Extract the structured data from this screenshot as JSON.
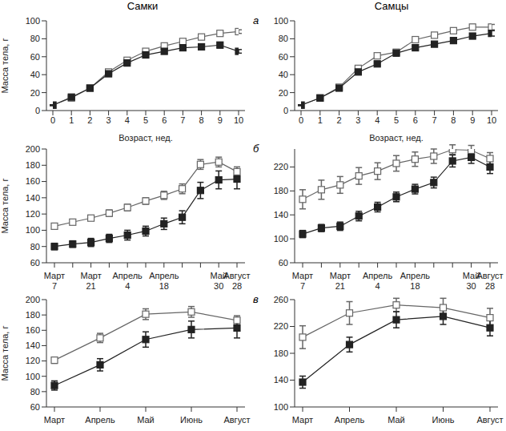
{
  "chart_data": [
    {
      "type": "line",
      "title": "Самки",
      "x_label": "Возраст, нед.",
      "y_label": "Масса тела, г",
      "x": [
        0,
        1,
        2,
        3,
        4,
        5,
        6,
        7,
        8,
        9,
        10
      ],
      "xlim": [
        0,
        10
      ],
      "xticks": [
        0,
        1,
        2,
        3,
        4,
        5,
        6,
        7,
        8,
        9,
        10
      ],
      "ylim": [
        0,
        100
      ],
      "yticks": [
        0,
        20,
        40,
        60,
        80,
        100
      ],
      "grid": false,
      "series": [
        {
          "color": "#666666",
          "marker": "square_open",
          "values": [
            6,
            14,
            25,
            43,
            56,
            66,
            72,
            77,
            82,
            86,
            88
          ],
          "errors": [
            0.5,
            0.5,
            1,
            1,
            1.5,
            1.5,
            1.5,
            2,
            2,
            2,
            2
          ]
        },
        {
          "color": "#222222",
          "marker": "square_filled",
          "values": [
            6,
            15,
            25,
            41,
            53,
            62,
            66,
            70,
            71,
            73,
            66
          ],
          "errors": [
            0.5,
            0.5,
            1,
            1,
            1.5,
            1.5,
            2,
            2,
            2,
            3,
            2
          ]
        }
      ]
    },
    {
      "type": "line",
      "title": "Самцы",
      "x_label": "Возраст, нед.",
      "annotation": "а",
      "x": [
        0,
        1,
        2,
        3,
        4,
        5,
        6,
        7,
        8,
        9,
        10
      ],
      "xlim": [
        0,
        10
      ],
      "xticks": [
        0,
        1,
        2,
        3,
        4,
        5,
        6,
        7,
        8,
        9,
        10
      ],
      "ylim": [
        0,
        100
      ],
      "yticks": [
        0,
        20,
        40,
        60,
        80,
        100
      ],
      "grid": false,
      "series": [
        {
          "color": "#666666",
          "marker": "square_open",
          "values": [
            6,
            14,
            26,
            47,
            61,
            65,
            79,
            84,
            89,
            93,
            93
          ],
          "errors": [
            0.5,
            0.5,
            1,
            1.5,
            2,
            2,
            2,
            2.5,
            3,
            3,
            3
          ]
        },
        {
          "color": "#222222",
          "marker": "square_filled",
          "values": [
            6,
            14,
            25,
            43,
            52,
            64,
            70,
            74,
            78,
            83,
            86
          ],
          "errors": [
            0.5,
            0.5,
            1,
            1,
            1.5,
            2,
            2,
            2,
            2,
            2.5,
            3
          ]
        }
      ]
    },
    {
      "type": "line",
      "y_label": "Масса тела, г",
      "categories": [
        "Март 7",
        null,
        "Март 21",
        null,
        "Апрель 4",
        null,
        "Апрель 18",
        null,
        null,
        "Май 30",
        "Август 28"
      ],
      "ylim": [
        60,
        200
      ],
      "yticks": [
        60,
        80,
        100,
        120,
        140,
        160,
        180,
        200
      ],
      "grid": false,
      "series": [
        {
          "color": "#666666",
          "marker": "square_open",
          "values": [
            105,
            110,
            115,
            121,
            128,
            136,
            143,
            151,
            181,
            184,
            172
          ],
          "errors": [
            3,
            3,
            3,
            4,
            4,
            4,
            5,
            6,
            6,
            6,
            6
          ]
        },
        {
          "color": "#222222",
          "marker": "square_filled",
          "values": [
            80,
            83,
            85,
            90,
            94,
            99,
            108,
            116,
            149,
            162,
            163
          ],
          "errors": [
            4,
            4,
            5,
            5,
            6,
            6,
            7,
            8,
            10,
            11,
            12
          ]
        }
      ]
    },
    {
      "type": "line",
      "annotation": "б",
      "categories": [
        "Март 7",
        null,
        "Март 21",
        null,
        "Апрель 4",
        null,
        "Апрель 18",
        null,
        null,
        "Май 30",
        "Август 28"
      ],
      "ylim": [
        60,
        250
      ],
      "yticks": [
        60,
        100,
        140,
        180,
        220
      ],
      "grid": false,
      "series": [
        {
          "color": "#666666",
          "marker": "square_open",
          "values": [
            166,
            182,
            190,
            205,
            213,
            226,
            233,
            238,
            249,
            248,
            234
          ],
          "errors": [
            16,
            16,
            14,
            14,
            14,
            13,
            12,
            12,
            8,
            8,
            10
          ]
        },
        {
          "color": "#222222",
          "marker": "square_filled",
          "values": [
            108,
            118,
            121,
            138,
            153,
            170,
            183,
            194,
            230,
            236,
            220
          ],
          "errors": [
            6,
            6,
            7,
            8,
            8,
            8,
            8,
            9,
            10,
            10,
            11
          ]
        }
      ]
    },
    {
      "type": "line",
      "y_label": "Масса тела, г",
      "categories": [
        "Март",
        "Апрель",
        "Май",
        "Июнь",
        "Август"
      ],
      "ylim": [
        60,
        200
      ],
      "yticks": [
        60,
        80,
        100,
        120,
        140,
        160,
        180,
        200
      ],
      "grid": false,
      "series": [
        {
          "color": "#666666",
          "marker": "square_open",
          "values": [
            121,
            150,
            181,
            184,
            173
          ],
          "errors": [
            4,
            6,
            7,
            7,
            6
          ]
        },
        {
          "color": "#222222",
          "marker": "square_filled",
          "values": [
            88,
            115,
            148,
            161,
            163
          ],
          "errors": [
            6,
            8,
            10,
            11,
            13
          ]
        }
      ]
    },
    {
      "type": "line",
      "annotation": "в",
      "categories": [
        "Март",
        "Апрель",
        "Май",
        "Июнь",
        "Август"
      ],
      "ylim": [
        100,
        260
      ],
      "yticks": [
        100,
        140,
        180,
        220,
        260
      ],
      "grid": false,
      "series": [
        {
          "color": "#666666",
          "marker": "square_open",
          "values": [
            204,
            240,
            252,
            248,
            233
          ],
          "errors": [
            17,
            17,
            10,
            14,
            14
          ]
        },
        {
          "color": "#222222",
          "marker": "square_filled",
          "values": [
            137,
            193,
            230,
            235,
            218
          ],
          "errors": [
            9,
            11,
            12,
            12,
            12
          ]
        }
      ]
    }
  ]
}
